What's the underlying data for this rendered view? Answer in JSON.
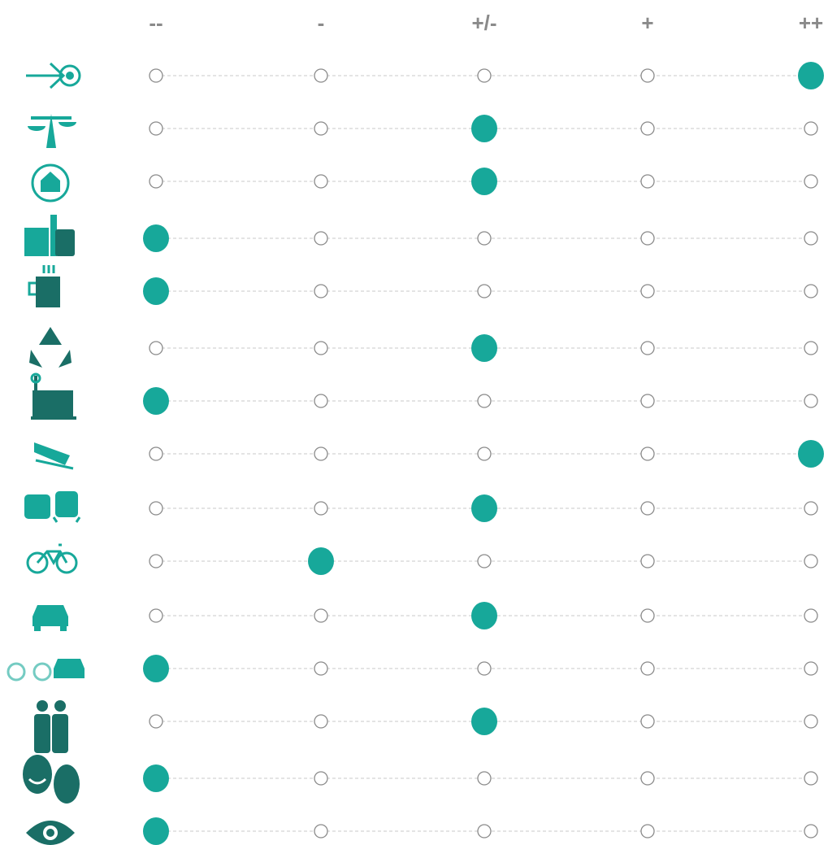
{
  "header": {
    "labels": [
      "--",
      "-",
      "+/-",
      "+",
      "++"
    ]
  },
  "rows": [
    {
      "selected": 4
    },
    {
      "selected": 2
    },
    {
      "selected": 2
    },
    {
      "selected": 0
    },
    {
      "selected": 0
    },
    {
      "selected": 2
    },
    {
      "selected": 0
    },
    {
      "selected": 4
    },
    {
      "selected": 2
    },
    {
      "selected": 1
    },
    {
      "selected": 2
    },
    {
      "selected": 0
    },
    {
      "selected": 2
    },
    {
      "selected": 0
    },
    {
      "selected": 0
    }
  ]
}
